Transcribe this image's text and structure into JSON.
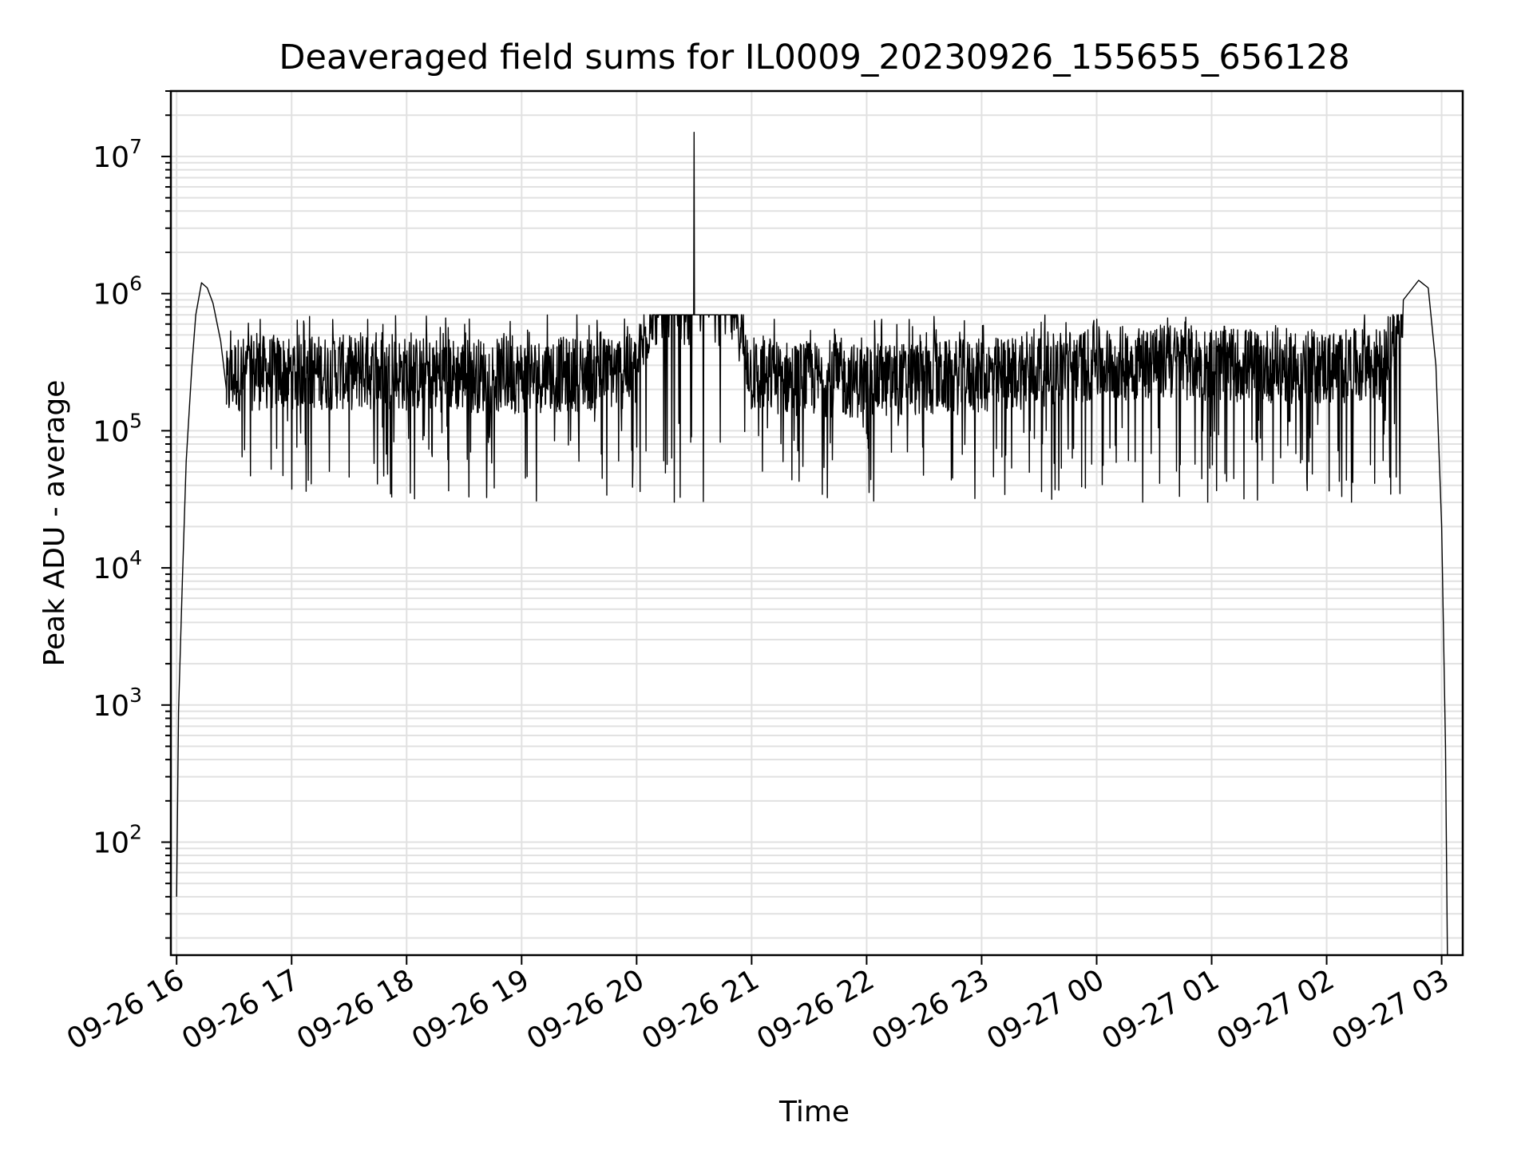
{
  "chart_data": {
    "type": "line",
    "title": "Deaveraged field sums for IL0009_20230926_155655_656128",
    "xlabel": "Time",
    "ylabel": "Peak ADU - average",
    "yscale": "log",
    "ylim": [
      15,
      30000000
    ],
    "xlim": [
      "2023-09-26 15:57",
      "2023-09-27 03:11"
    ],
    "grid": true,
    "grid_minor": true,
    "line_color": "#000000",
    "x_ticks": [
      {
        "time": "2023-09-26 16:00",
        "label": "09-26 16"
      },
      {
        "time": "2023-09-26 17:00",
        "label": "09-26 17"
      },
      {
        "time": "2023-09-26 18:00",
        "label": "09-26 18"
      },
      {
        "time": "2023-09-26 19:00",
        "label": "09-26 19"
      },
      {
        "time": "2023-09-26 20:00",
        "label": "09-26 20"
      },
      {
        "time": "2023-09-26 21:00",
        "label": "09-26 21"
      },
      {
        "time": "2023-09-26 22:00",
        "label": "09-26 22"
      },
      {
        "time": "2023-09-26 23:00",
        "label": "09-26 23"
      },
      {
        "time": "2023-09-27 00:00",
        "label": "09-27 00"
      },
      {
        "time": "2023-09-27 01:00",
        "label": "09-27 01"
      },
      {
        "time": "2023-09-27 02:00",
        "label": "09-27 02"
      },
      {
        "time": "2023-09-27 03:00",
        "label": "09-27 03"
      }
    ],
    "y_ticks": [
      {
        "value": 100,
        "base": "10",
        "exp": "2"
      },
      {
        "value": 1000,
        "base": "10",
        "exp": "3"
      },
      {
        "value": 10000,
        "base": "10",
        "exp": "4"
      },
      {
        "value": 100000,
        "base": "10",
        "exp": "5"
      },
      {
        "value": 1000000,
        "base": "10",
        "exp": "6"
      },
      {
        "value": 10000000,
        "base": "10",
        "exp": "7"
      }
    ],
    "series": [
      {
        "points": [
          [
            "2023-09-26 16:00",
            40
          ],
          [
            "2023-09-26 16:01",
            900
          ],
          [
            "2023-09-26 16:03",
            8000
          ],
          [
            "2023-09-26 16:05",
            60000
          ],
          [
            "2023-09-26 16:08",
            300000
          ],
          [
            "2023-09-26 16:10",
            700000
          ],
          [
            "2023-09-26 16:13",
            1200000
          ],
          [
            "2023-09-26 16:16",
            1100000
          ],
          [
            "2023-09-26 16:19",
            850000
          ],
          [
            "2023-09-26 16:23",
            450000
          ],
          [
            "2023-09-26 16:26",
            200000
          ],
          [
            "2023-09-26 16:30",
            260000
          ],
          [
            "2023-09-26 17:00",
            270000
          ],
          [
            "2023-09-26 18:00",
            260000
          ],
          [
            "2023-09-26 19:00",
            250000
          ],
          [
            "2023-09-26 20:00",
            270000
          ],
          [
            "2023-09-26 20:30",
            15000000
          ],
          [
            "2023-09-26 21:00",
            250000
          ],
          [
            "2023-09-26 22:00",
            230000
          ],
          [
            "2023-09-26 23:00",
            250000
          ],
          [
            "2023-09-26 23:50",
            300000
          ],
          [
            "2023-09-27 00:30",
            320000
          ],
          [
            "2023-09-27 01:00",
            310000
          ],
          [
            "2023-09-27 02:00",
            290000
          ],
          [
            "2023-09-27 02:30",
            300000
          ],
          [
            "2023-09-27 02:40",
            900000
          ],
          [
            "2023-09-27 02:48",
            1250000
          ],
          [
            "2023-09-27 02:53",
            1100000
          ],
          [
            "2023-09-27 02:57",
            300000
          ],
          [
            "2023-09-27 03:00",
            20000
          ],
          [
            "2023-09-27 03:02",
            500
          ],
          [
            "2023-09-27 03:03",
            15
          ]
        ],
        "noise": {
          "from": "2023-09-26 16:26",
          "to": "2023-09-27 02:40",
          "typical_low": 30000,
          "typical_high": 700000
        }
      }
    ]
  }
}
